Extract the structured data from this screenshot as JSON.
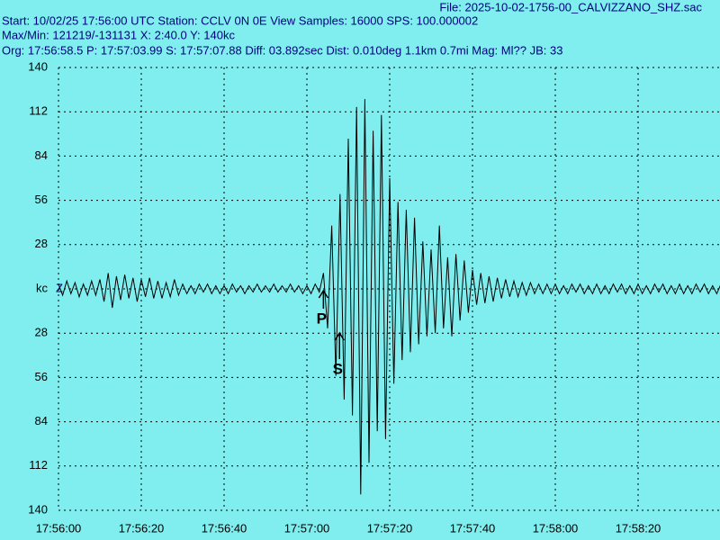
{
  "chart_data": {
    "type": "line",
    "file": "File: 2025-10-02-1756-00_CALVIZZANO_SHZ.sac",
    "info_lines": [
      "Start: 10/02/25 17:56:00 UTC Station: CCLV 0N 0E View Samples: 16000  SPS: 100.000002",
      "Max/Min: 121219/-131131 X: 2:40.0 Y: 140kc",
      "Org: 17:56:58.5 P: 17:57:03.99 S: 17:57:07.88 Diff: 03.892sec Dist: 0.010deg 1.1km 0.7mi  Mag: Ml?? JB: 33"
    ],
    "y_label": "kc",
    "channel": "Z",
    "color": "#000000",
    "grid": true,
    "xlim": [
      0,
      160
    ],
    "ylim": [
      -140,
      140
    ],
    "xticks": [
      {
        "value": 0,
        "label": "17:56:00"
      },
      {
        "value": 20,
        "label": "17:56:20"
      },
      {
        "value": 40,
        "label": "17:56:40"
      },
      {
        "value": 60,
        "label": "17:57:00"
      },
      {
        "value": 80,
        "label": "17:57:20"
      },
      {
        "value": 100,
        "label": "17:57:40"
      },
      {
        "value": 120,
        "label": "17:58:00"
      },
      {
        "value": 140,
        "label": "17:58:20"
      }
    ],
    "yticks": [
      140,
      112,
      84,
      56,
      28,
      {
        "value": 0,
        "label": "kc"
      },
      {
        "value": -28,
        "label": "28"
      },
      {
        "value": -56,
        "label": "56"
      },
      {
        "value": -84,
        "label": "84"
      },
      {
        "value": -112,
        "label": "112"
      },
      {
        "value": -140,
        "label": "140"
      }
    ],
    "annotations": [
      {
        "x": 63.99,
        "text": "P"
      },
      {
        "x": 67.88,
        "text": "S"
      }
    ],
    "x": [
      0,
      1,
      2,
      3,
      4,
      5,
      6,
      7,
      8,
      9,
      10,
      11,
      12,
      13,
      14,
      15,
      16,
      17,
      18,
      19,
      20,
      21,
      22,
      23,
      24,
      25,
      26,
      27,
      28,
      29,
      30,
      31,
      32,
      33,
      34,
      35,
      36,
      37,
      38,
      39,
      40,
      41,
      42,
      43,
      44,
      45,
      46,
      47,
      48,
      49,
      50,
      51,
      52,
      53,
      54,
      55,
      56,
      57,
      58,
      59,
      60,
      61,
      62,
      63,
      64,
      65,
      66,
      67,
      68,
      69,
      70,
      71,
      72,
      73,
      74,
      75,
      76,
      77,
      78,
      79,
      80,
      81,
      82,
      83,
      84,
      85,
      86,
      87,
      88,
      89,
      90,
      91,
      92,
      93,
      94,
      95,
      96,
      97,
      98,
      99,
      100,
      101,
      102,
      103,
      104,
      105,
      106,
      107,
      108,
      109,
      110,
      111,
      112,
      113,
      114,
      115,
      116,
      117,
      118,
      119,
      120,
      121,
      122,
      123,
      124,
      125,
      126,
      127,
      128,
      129,
      130,
      131,
      132,
      133,
      134,
      135,
      136,
      137,
      138,
      139,
      140,
      141,
      142,
      143,
      144,
      145,
      146,
      147,
      148,
      149,
      150,
      151,
      152,
      153,
      154,
      155,
      156,
      157,
      158,
      159,
      160
    ],
    "values": [
      3,
      -4,
      5,
      -3,
      4,
      -5,
      3,
      -4,
      5,
      -4,
      6,
      -8,
      10,
      -12,
      8,
      -7,
      9,
      -6,
      7,
      -8,
      6,
      -5,
      7,
      -6,
      5,
      -6,
      4,
      -5,
      6,
      -4,
      3,
      -3,
      2,
      -3,
      3,
      -2,
      3,
      -3,
      2,
      -3,
      2,
      -3,
      3,
      -2,
      2,
      -3,
      2,
      -2,
      3,
      -2,
      2,
      -2,
      3,
      -2,
      2,
      -2,
      3,
      -2,
      2,
      -3,
      2,
      -3,
      3,
      -2,
      10,
      -25,
      40,
      -55,
      60,
      -70,
      95,
      -80,
      115,
      -130,
      120,
      -110,
      100,
      -90,
      110,
      -95,
      70,
      -60,
      55,
      -45,
      50,
      -40,
      45,
      -35,
      30,
      -30,
      25,
      -28,
      40,
      -25,
      20,
      -30,
      22,
      -20,
      18,
      -15,
      12,
      -10,
      10,
      -9,
      8,
      -8,
      7,
      -6,
      6,
      -5,
      5,
      -5,
      4,
      -4,
      4,
      -3,
      3,
      -3,
      3,
      -3,
      3,
      -3,
      2,
      -3,
      3,
      -2,
      3,
      -3,
      2,
      -3,
      3,
      -3,
      2,
      -3,
      3,
      -2,
      3,
      -3,
      2,
      -3,
      3,
      -3,
      2,
      -3,
      3,
      -2,
      3,
      -3,
      2,
      -3,
      3,
      -3,
      2,
      -3,
      3,
      -2,
      3,
      -3,
      2,
      -3,
      3
    ]
  }
}
